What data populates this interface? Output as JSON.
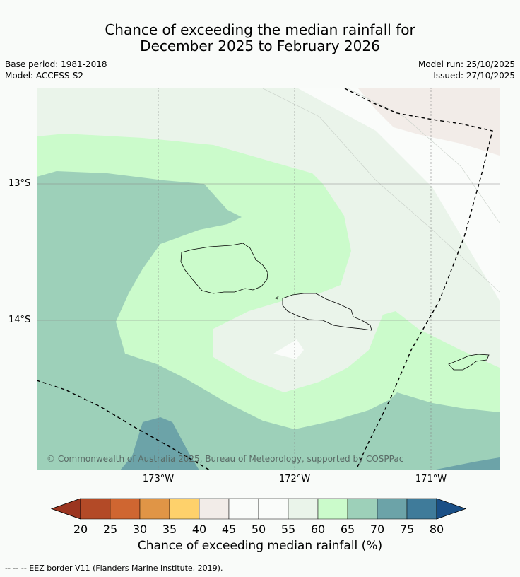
{
  "title_line1": "Chance of exceeding the median rainfall for",
  "title_line2": "December 2025 to February 2026",
  "base_period": "Base period: 1981-2018",
  "model": "Model: ACCESS-S2",
  "model_run": "Model run: 25/10/2025",
  "issued": "Issued: 27/10/2025",
  "lat_labels": [
    "13°S",
    "14°S"
  ],
  "lon_labels": [
    "173°W",
    "172°W",
    "171°W"
  ],
  "copyright": "© Commonwealth of Australia 2025, Bureau of Meteorology, supported by COSPPac",
  "colorbar": {
    "label": "Chance of exceeding median rainfall (%)",
    "ticks": [
      "20",
      "25",
      "30",
      "35",
      "40",
      "45",
      "50",
      "55",
      "60",
      "65",
      "70",
      "75",
      "80"
    ],
    "colors": [
      "#9b3520",
      "#b34a27",
      "#cf6631",
      "#e09546",
      "#fed16b",
      "#f2ece8",
      "#fafcfa",
      "#fafcfa",
      "#eaf4ea",
      "#cbfbcb",
      "#9dd0b9",
      "#6ca3a8",
      "#3f7b9a",
      "#1a4f86"
    ]
  },
  "footer": "-- -- -- EEZ border V11 (Flanders Marine Institute, 2019)."
}
